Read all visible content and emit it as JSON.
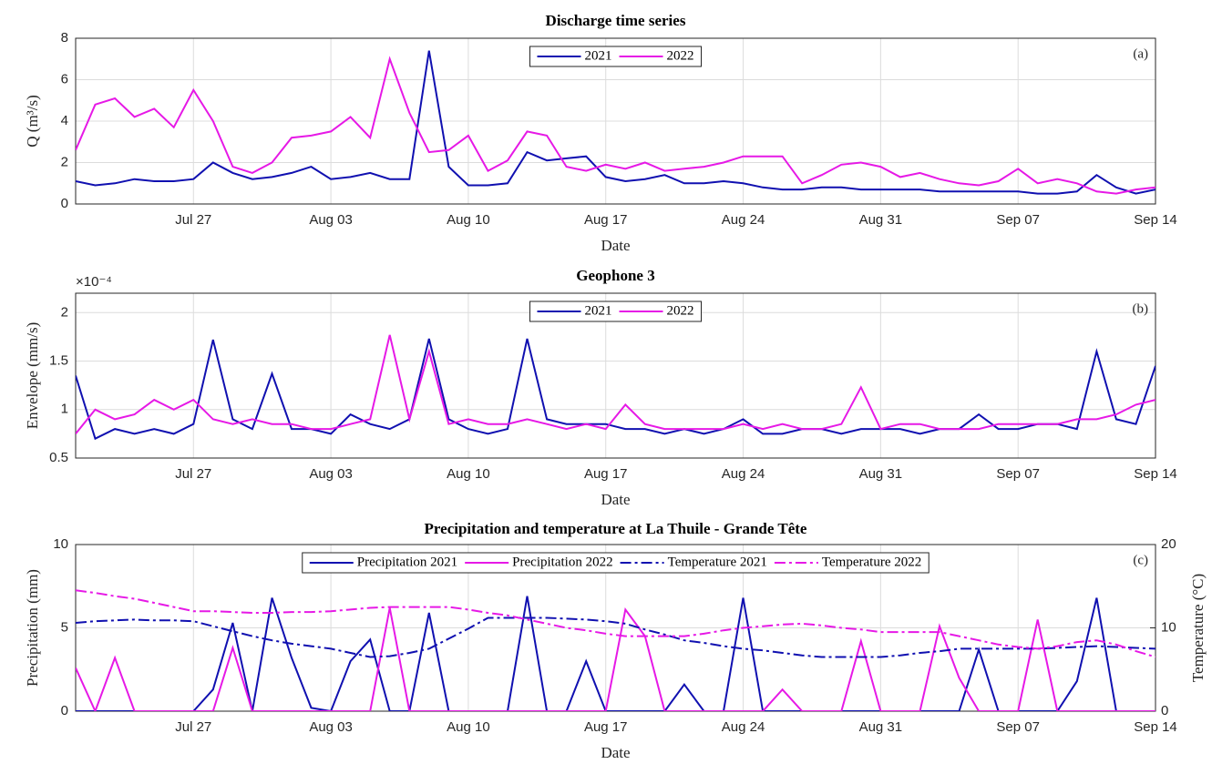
{
  "chart_data": [
    {
      "type": "line",
      "title": "Discharge time series",
      "xlabel": "Date",
      "ylabel": "Q (m³/s)",
      "annotation": "(a)",
      "x": [
        "Jul 21",
        "Jul 22",
        "Jul 23",
        "Jul 24",
        "Jul 25",
        "Jul 26",
        "Jul 27",
        "Jul 28",
        "Jul 29",
        "Jul 30",
        "Jul 31",
        "Aug 01",
        "Aug 02",
        "Aug 03",
        "Aug 04",
        "Aug 05",
        "Aug 06",
        "Aug 07",
        "Aug 08",
        "Aug 09",
        "Aug 10",
        "Aug 11",
        "Aug 12",
        "Aug 13",
        "Aug 14",
        "Aug 15",
        "Aug 16",
        "Aug 17",
        "Aug 18",
        "Aug 19",
        "Aug 20",
        "Aug 21",
        "Aug 22",
        "Aug 23",
        "Aug 24",
        "Aug 25",
        "Aug 26",
        "Aug 27",
        "Aug 28",
        "Aug 29",
        "Aug 30",
        "Aug 31",
        "Sep 01",
        "Sep 02",
        "Sep 03",
        "Sep 04",
        "Sep 05",
        "Sep 06",
        "Sep 07",
        "Sep 08",
        "Sep 09",
        "Sep 10",
        "Sep 11",
        "Sep 12",
        "Sep 13",
        "Sep 14"
      ],
      "series": [
        {
          "name": "2021",
          "color": "#1010b0",
          "values": [
            1.1,
            0.9,
            1.0,
            1.2,
            1.1,
            1.1,
            1.2,
            2.0,
            1.5,
            1.2,
            1.3,
            1.5,
            1.8,
            1.2,
            1.3,
            1.5,
            1.2,
            1.2,
            7.4,
            1.8,
            0.9,
            0.9,
            1.0,
            2.5,
            2.1,
            2.2,
            2.3,
            1.3,
            1.1,
            1.2,
            1.4,
            1.0,
            1.0,
            1.1,
            1.0,
            0.8,
            0.7,
            0.7,
            0.8,
            0.8,
            0.7,
            0.7,
            0.7,
            0.7,
            0.6,
            0.6,
            0.6,
            0.6,
            0.6,
            0.5,
            0.5,
            0.6,
            1.4,
            0.8,
            0.5,
            0.7
          ]
        },
        {
          "name": "2022",
          "color": "#e619e6",
          "values": [
            2.6,
            4.8,
            5.1,
            4.2,
            4.6,
            3.7,
            5.5,
            4.0,
            1.8,
            1.5,
            2.0,
            3.2,
            3.3,
            3.5,
            4.2,
            3.2,
            7.0,
            4.4,
            2.5,
            2.6,
            3.3,
            1.6,
            2.1,
            3.5,
            3.3,
            1.8,
            1.6,
            1.9,
            1.7,
            2.0,
            1.6,
            1.7,
            1.8,
            2.0,
            2.3,
            2.3,
            2.3,
            1.0,
            1.4,
            1.9,
            2.0,
            1.8,
            1.3,
            1.5,
            1.2,
            1.0,
            0.9,
            1.1,
            1.7,
            1.0,
            1.2,
            1.0,
            0.6,
            0.5,
            0.7,
            0.8
          ]
        }
      ],
      "xlim": [
        "Jul 21",
        "Sep 14"
      ],
      "xticks": [
        "Jul 27",
        "Aug 03",
        "Aug 10",
        "Aug 17",
        "Aug 24",
        "Aug 31",
        "Sep 07",
        "Sep 14"
      ],
      "ylim": [
        0,
        8
      ],
      "yticks": [
        0,
        2,
        4,
        6,
        8
      ],
      "grid": true,
      "legend": "north"
    },
    {
      "type": "line",
      "title": "Geophone 3",
      "xlabel": "Date",
      "ylabel": "Envelope (mm/s)",
      "y_multiplier": "×10⁻⁴",
      "annotation": "(b)",
      "x": [
        "Jul 21",
        "Jul 22",
        "Jul 23",
        "Jul 24",
        "Jul 25",
        "Jul 26",
        "Jul 27",
        "Jul 28",
        "Jul 29",
        "Jul 30",
        "Jul 31",
        "Aug 01",
        "Aug 02",
        "Aug 03",
        "Aug 04",
        "Aug 05",
        "Aug 06",
        "Aug 07",
        "Aug 08",
        "Aug 09",
        "Aug 10",
        "Aug 11",
        "Aug 12",
        "Aug 13",
        "Aug 14",
        "Aug 15",
        "Aug 16",
        "Aug 17",
        "Aug 18",
        "Aug 19",
        "Aug 20",
        "Aug 21",
        "Aug 22",
        "Aug 23",
        "Aug 24",
        "Aug 25",
        "Aug 26",
        "Aug 27",
        "Aug 28",
        "Aug 29",
        "Aug 30",
        "Aug 31",
        "Sep 01",
        "Sep 02",
        "Sep 03",
        "Sep 04",
        "Sep 05",
        "Sep 06",
        "Sep 07",
        "Sep 08",
        "Sep 09",
        "Sep 10",
        "Sep 11",
        "Sep 12",
        "Sep 13",
        "Sep 14"
      ],
      "series": [
        {
          "name": "2021",
          "color": "#1010b0",
          "values": [
            1.35,
            0.7,
            0.8,
            0.75,
            0.8,
            0.75,
            0.85,
            1.72,
            0.9,
            0.8,
            1.37,
            0.8,
            0.8,
            0.75,
            0.95,
            0.85,
            0.8,
            0.9,
            1.73,
            0.9,
            0.8,
            0.75,
            0.8,
            1.73,
            0.9,
            0.85,
            0.85,
            0.85,
            0.8,
            0.8,
            0.75,
            0.8,
            0.75,
            0.8,
            0.9,
            0.75,
            0.75,
            0.8,
            0.8,
            0.75,
            0.8,
            0.8,
            0.8,
            0.75,
            0.8,
            0.8,
            0.95,
            0.8,
            0.8,
            0.85,
            0.85,
            0.8,
            1.6,
            0.9,
            0.85,
            1.45
          ]
        },
        {
          "name": "2022",
          "color": "#e619e6",
          "values": [
            0.75,
            1.0,
            0.9,
            0.95,
            1.1,
            1.0,
            1.1,
            0.9,
            0.85,
            0.9,
            0.85,
            0.85,
            0.8,
            0.8,
            0.85,
            0.9,
            1.77,
            0.9,
            1.6,
            0.85,
            0.9,
            0.85,
            0.85,
            0.9,
            0.85,
            0.8,
            0.85,
            0.8,
            1.05,
            0.85,
            0.8,
            0.8,
            0.8,
            0.8,
            0.85,
            0.8,
            0.85,
            0.8,
            0.8,
            0.85,
            1.23,
            0.8,
            0.85,
            0.85,
            0.8,
            0.8,
            0.8,
            0.85,
            0.85,
            0.85,
            0.85,
            0.9,
            0.9,
            0.95,
            1.05,
            1.1
          ]
        }
      ],
      "xlim": [
        "Jul 21",
        "Sep 14"
      ],
      "xticks": [
        "Jul 27",
        "Aug 03",
        "Aug 10",
        "Aug 17",
        "Aug 24",
        "Aug 31",
        "Sep 07",
        "Sep 14"
      ],
      "ylim": [
        0.5,
        2.2
      ],
      "yticks": [
        0.5,
        1,
        1.5,
        2
      ],
      "grid": true,
      "legend": "north"
    },
    {
      "type": "line",
      "title": "Precipitation and temperature at La Thuile - Grande Tête",
      "xlabel": "Date",
      "ylabel": "Precipitation (mm)",
      "y2label": "Temperature (°C)",
      "annotation": "(c)",
      "x": [
        "Jul 21",
        "Jul 22",
        "Jul 23",
        "Jul 24",
        "Jul 25",
        "Jul 26",
        "Jul 27",
        "Jul 28",
        "Jul 29",
        "Jul 30",
        "Jul 31",
        "Aug 01",
        "Aug 02",
        "Aug 03",
        "Aug 04",
        "Aug 05",
        "Aug 06",
        "Aug 07",
        "Aug 08",
        "Aug 09",
        "Aug 10",
        "Aug 11",
        "Aug 12",
        "Aug 13",
        "Aug 14",
        "Aug 15",
        "Aug 16",
        "Aug 17",
        "Aug 18",
        "Aug 19",
        "Aug 20",
        "Aug 21",
        "Aug 22",
        "Aug 23",
        "Aug 24",
        "Aug 25",
        "Aug 26",
        "Aug 27",
        "Aug 28",
        "Aug 29",
        "Aug 30",
        "Aug 31",
        "Sep 01",
        "Sep 02",
        "Sep 03",
        "Sep 04",
        "Sep 05",
        "Sep 06",
        "Sep 07",
        "Sep 08",
        "Sep 09",
        "Sep 10",
        "Sep 11",
        "Sep 12",
        "Sep 13",
        "Sep 14"
      ],
      "series": [
        {
          "name": "Precipitation 2021",
          "color": "#1010b0",
          "values": [
            0,
            0,
            0,
            0,
            0,
            0,
            0,
            1.3,
            5.3,
            0,
            6.8,
            3.2,
            0.2,
            0,
            3.0,
            4.3,
            0,
            0,
            5.9,
            0,
            0,
            0,
            0,
            6.9,
            0,
            0,
            3.0,
            0,
            0,
            0,
            0,
            1.6,
            0,
            0,
            6.8,
            0,
            0,
            0,
            0,
            0,
            0,
            0,
            0,
            0,
            0,
            0,
            3.7,
            0,
            0,
            0,
            0,
            1.8,
            6.8,
            0,
            0,
            0
          ]
        },
        {
          "name": "Precipitation 2022",
          "color": "#e619e6",
          "values": [
            2.6,
            0,
            3.2,
            0,
            0,
            0,
            0,
            0,
            3.8,
            0,
            0,
            0,
            0,
            0,
            0,
            0,
            6.2,
            0,
            0,
            0,
            0,
            0,
            0,
            0,
            0,
            0,
            0,
            0,
            6.1,
            4.5,
            0,
            0,
            0,
            0,
            0,
            0,
            1.3,
            0,
            0,
            0,
            4.2,
            0,
            0,
            0,
            5.1,
            2.0,
            0,
            0,
            0,
            5.5,
            0,
            0,
            0,
            0,
            0,
            0
          ]
        },
        {
          "name": "Temperature 2021",
          "color": "#1010b0",
          "axis": "y2",
          "line_style": "dashdot",
          "values": [
            10.6,
            10.8,
            10.9,
            11.0,
            10.9,
            10.9,
            10.8,
            10.2,
            9.6,
            9.0,
            8.5,
            8.1,
            7.8,
            7.5,
            7.0,
            6.5,
            6.6,
            7.0,
            7.5,
            8.7,
            9.9,
            11.2,
            11.2,
            11.2,
            11.2,
            11.1,
            11.0,
            10.8,
            10.5,
            9.8,
            9.2,
            8.5,
            8.2,
            7.8,
            7.5,
            7.3,
            7.0,
            6.7,
            6.5,
            6.5,
            6.5,
            6.5,
            6.7,
            7.0,
            7.2,
            7.5,
            7.5,
            7.5,
            7.5,
            7.5,
            7.6,
            7.7,
            7.8,
            7.7,
            7.6,
            7.5
          ]
        },
        {
          "name": "Temperature 2022",
          "color": "#e619e6",
          "axis": "y2",
          "line_style": "dashdot",
          "values": [
            14.5,
            14.2,
            13.8,
            13.5,
            13.0,
            12.5,
            12.0,
            12.0,
            11.9,
            11.8,
            11.8,
            11.9,
            11.9,
            12.0,
            12.2,
            12.4,
            12.5,
            12.5,
            12.5,
            12.5,
            12.2,
            11.8,
            11.5,
            11.0,
            10.5,
            10.0,
            9.7,
            9.3,
            9.0,
            9.0,
            9.0,
            9.0,
            9.3,
            9.7,
            10.0,
            10.2,
            10.4,
            10.5,
            10.3,
            10.0,
            9.8,
            9.5,
            9.5,
            9.5,
            9.5,
            9.0,
            8.5,
            8.0,
            7.7,
            7.5,
            7.8,
            8.3,
            8.5,
            8.0,
            7.2,
            6.5
          ]
        }
      ],
      "xlim": [
        "Jul 21",
        "Sep 14"
      ],
      "xticks": [
        "Jul 27",
        "Aug 03",
        "Aug 10",
        "Aug 17",
        "Aug 24",
        "Aug 31",
        "Sep 07",
        "Sep 14"
      ],
      "ylim": [
        0,
        10
      ],
      "yticks": [
        0,
        5,
        10
      ],
      "y2lim": [
        0,
        20
      ],
      "y2ticks": [
        0,
        10,
        20
      ],
      "grid": true,
      "legend": "north"
    }
  ]
}
